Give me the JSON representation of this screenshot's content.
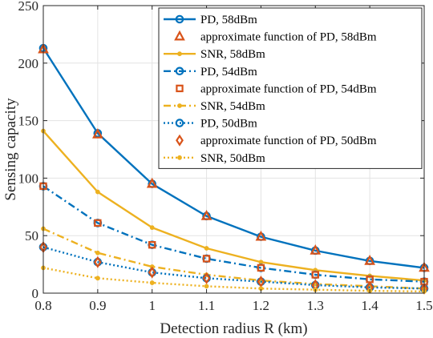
{
  "chart_data": {
    "type": "line",
    "xlabel": "Detection radius R (km)",
    "ylabel": "Sensing capacity",
    "xlim": [
      0.8,
      1.5
    ],
    "ylim": [
      0,
      250
    ],
    "xticks": [
      "0.8",
      "0.9",
      "1",
      "1.1",
      "1.2",
      "1.3",
      "1.4",
      "1.5"
    ],
    "yticks": [
      "0",
      "50",
      "100",
      "150",
      "200",
      "250"
    ],
    "grid": true,
    "legend_position": "top-right",
    "x": [
      0.8,
      0.9,
      1.0,
      1.1,
      1.2,
      1.3,
      1.4,
      1.5
    ],
    "series": [
      {
        "name": "PD, 58dBm",
        "values": [
          213,
          139,
          95,
          67,
          49,
          37,
          28,
          22
        ],
        "color": "#0072BD",
        "line": "solid",
        "marker": "circle"
      },
      {
        "name": "approximate function of PD, 58dBm",
        "values": [
          212,
          138,
          95,
          67,
          49,
          37,
          28,
          22
        ],
        "color": "#D95319",
        "line": "none",
        "marker": "triangle"
      },
      {
        "name": "SNR, 58dBm",
        "values": [
          141,
          88,
          57,
          39,
          27,
          20,
          15,
          11
        ],
        "color": "#EDB120",
        "line": "solid",
        "marker": "dot"
      },
      {
        "name": "PD, 54dBm",
        "values": [
          93,
          61,
          42,
          30,
          22,
          16,
          12,
          10
        ],
        "color": "#0072BD",
        "line": "dashdot",
        "marker": "circle"
      },
      {
        "name": "approximate function of PD, 54dBm",
        "values": [
          93,
          61,
          42,
          30,
          22,
          16,
          12,
          10
        ],
        "color": "#D95319",
        "line": "none",
        "marker": "square"
      },
      {
        "name": "SNR, 54dBm",
        "values": [
          56,
          35,
          23,
          16,
          11,
          8,
          6,
          4
        ],
        "color": "#EDB120",
        "line": "dashdot",
        "marker": "dot"
      },
      {
        "name": "PD, 50dBm",
        "values": [
          40,
          27,
          18,
          13,
          10,
          7,
          5,
          4
        ],
        "color": "#0072BD",
        "line": "dotted",
        "marker": "circle"
      },
      {
        "name": "approximate function of PD, 50dBm",
        "values": [
          40,
          27,
          18,
          13,
          10,
          7,
          5,
          4
        ],
        "color": "#D95319",
        "line": "none",
        "marker": "diamond"
      },
      {
        "name": "SNR, 50dBm",
        "values": [
          22,
          13,
          9,
          6,
          4,
          3,
          2,
          1.5
        ],
        "color": "#EDB120",
        "line": "dotted",
        "marker": "dot"
      }
    ]
  }
}
